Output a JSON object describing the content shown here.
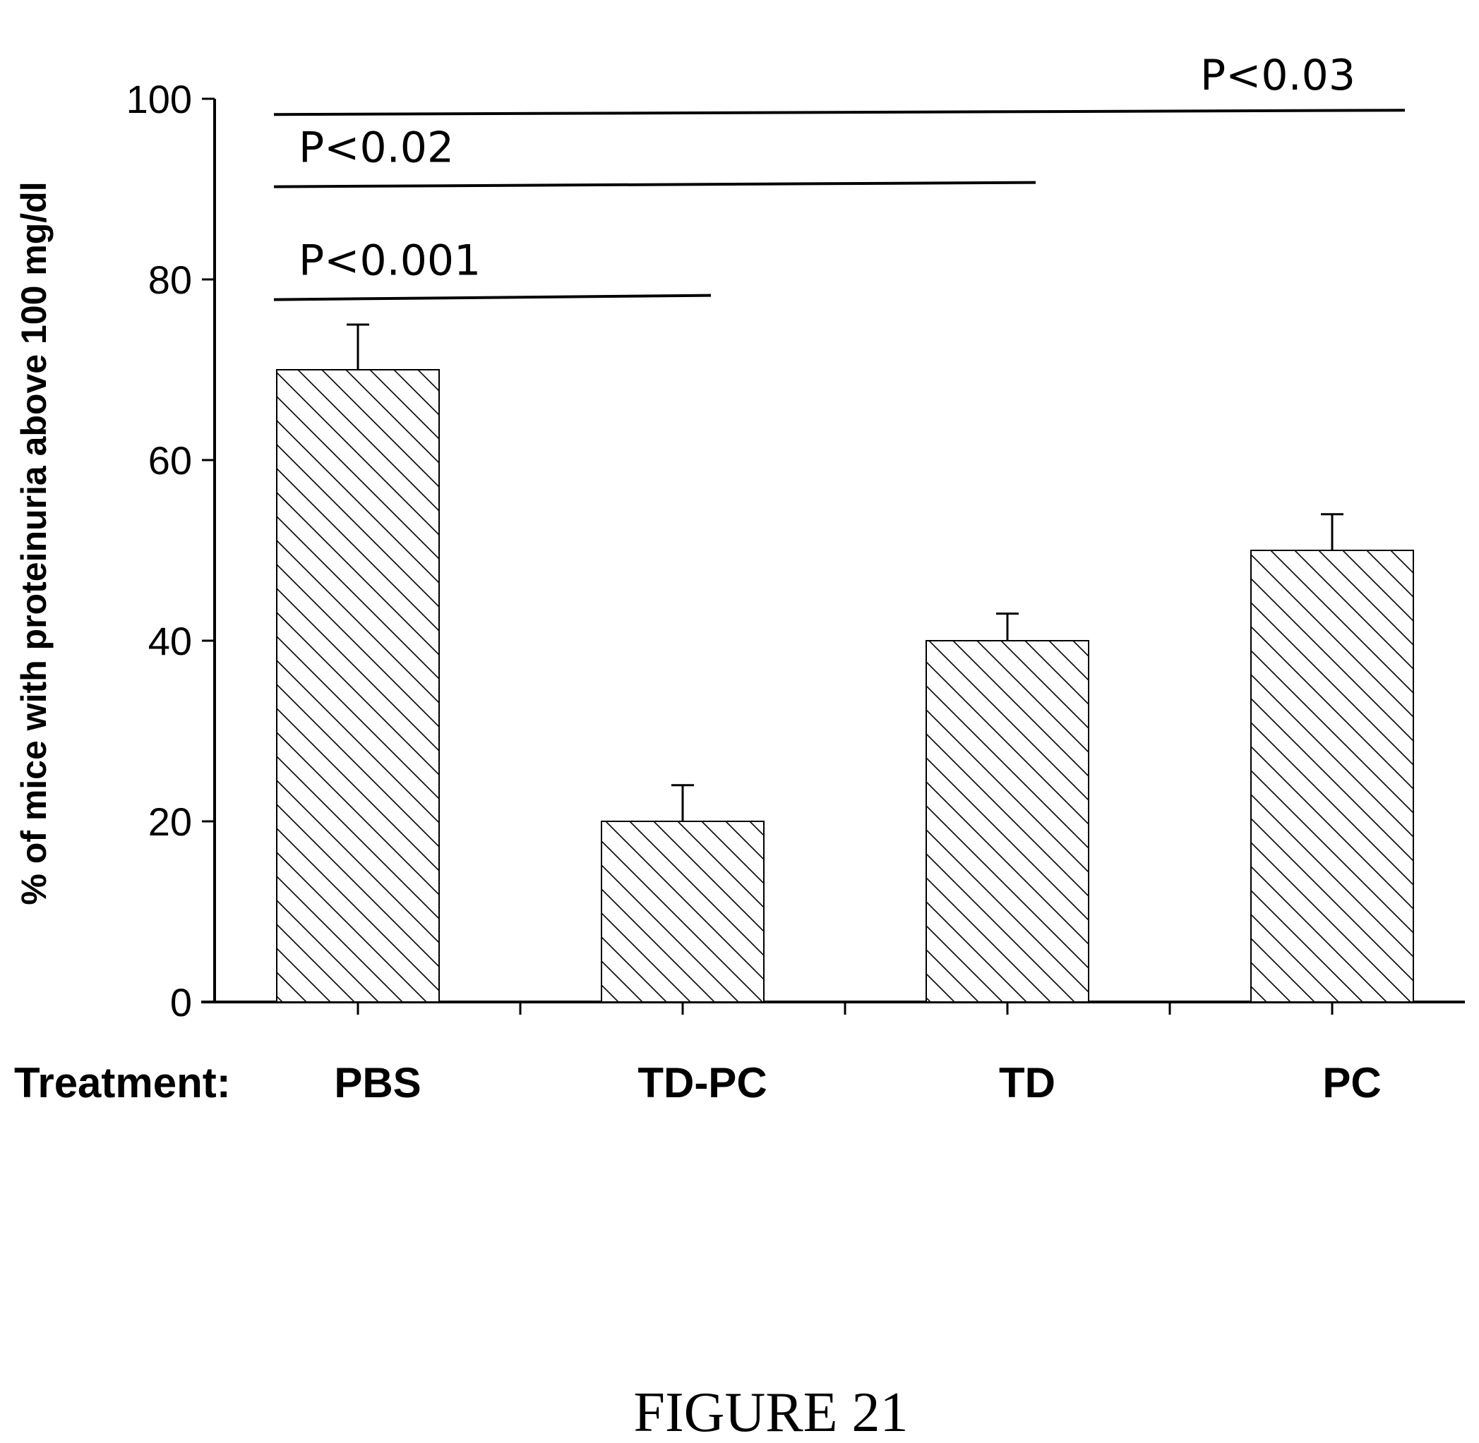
{
  "chart_data": {
    "type": "bar",
    "ylabel": "% of mice with proteinuria above 100 mg/dl",
    "xlabel": "Treatment:",
    "categories": [
      "PBS",
      "TD-PC",
      "TD",
      "PC"
    ],
    "values": [
      70,
      20,
      40,
      50
    ],
    "error_plus": [
      5,
      4,
      3,
      4
    ],
    "ylim": [
      0,
      100
    ],
    "yticks": [
      0,
      20,
      40,
      60,
      80,
      100
    ],
    "fill": "diagonal-hatch",
    "significance": [
      {
        "label": "P<0.001",
        "from": "PBS",
        "to": "TD-PC",
        "y": 78
      },
      {
        "label": "P<0.02",
        "from": "PBS",
        "to": "TD",
        "y": 90.5
      },
      {
        "label": "P<0.03",
        "from": "PBS",
        "to": "PC",
        "y": 98.5
      }
    ]
  },
  "caption": "FIGURE 21",
  "colors": {
    "ink": "#000000",
    "background": "#ffffff"
  }
}
